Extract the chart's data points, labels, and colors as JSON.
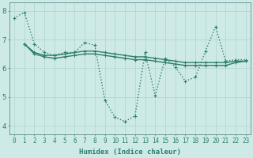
{
  "xlabel": "Humidex (Indice chaleur)",
  "bg_color": "#ceeae6",
  "line_color": "#2e7d6e",
  "grid_color": "#aed4ce",
  "xlim": [
    -0.5,
    23.5
  ],
  "ylim": [
    3.7,
    8.3
  ],
  "yticks": [
    4,
    5,
    6,
    7,
    8
  ],
  "xticks": [
    0,
    1,
    2,
    3,
    4,
    5,
    6,
    7,
    8,
    9,
    10,
    11,
    12,
    13,
    14,
    15,
    16,
    17,
    18,
    19,
    20,
    21,
    22,
    23
  ],
  "series": [
    [
      7.75,
      7.95,
      6.85,
      6.55,
      6.45,
      6.55,
      6.55,
      6.9,
      6.8,
      4.9,
      4.3,
      4.15,
      4.35,
      6.55,
      5.05,
      6.35,
      6.05,
      5.55,
      5.7,
      6.6,
      7.45,
      6.25,
      6.3,
      6.3
    ],
    [
      null,
      6.85,
      6.55,
      6.45,
      6.45,
      6.5,
      6.55,
      6.6,
      6.6,
      6.55,
      6.5,
      6.45,
      6.4,
      6.4,
      6.35,
      6.3,
      6.25,
      6.2,
      6.2,
      6.2,
      6.2,
      6.2,
      6.25,
      6.25
    ],
    [
      null,
      6.85,
      6.5,
      6.4,
      6.35,
      6.4,
      6.45,
      6.5,
      6.5,
      6.45,
      6.4,
      6.35,
      6.3,
      6.3,
      6.25,
      6.2,
      6.15,
      6.1,
      6.1,
      6.1,
      6.1,
      6.1,
      6.2,
      6.25
    ]
  ],
  "series_styles": [
    {
      "linestyle": ":",
      "linewidth": 1.0,
      "marker": "+",
      "markersize": 3.5,
      "markeredgewidth": 0.8
    },
    {
      "linestyle": "-",
      "linewidth": 1.0,
      "marker": "+",
      "markersize": 3.5,
      "markeredgewidth": 0.8
    },
    {
      "linestyle": "-",
      "linewidth": 1.0,
      "marker": "+",
      "markersize": 3.5,
      "markeredgewidth": 0.8
    }
  ],
  "tick_fontsize": 5.5,
  "xlabel_fontsize": 6.5,
  "ytick_fontsize": 6.5
}
